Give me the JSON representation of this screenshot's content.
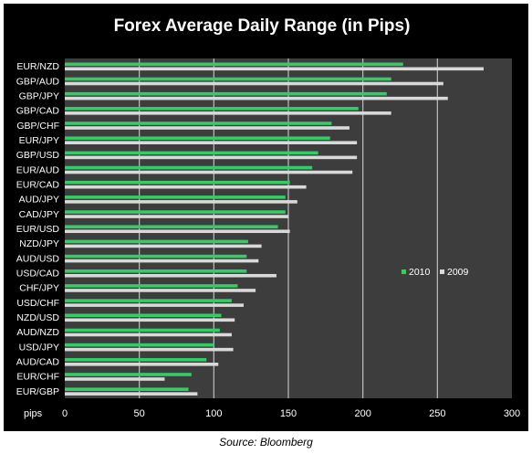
{
  "chart_data": {
    "type": "bar",
    "orientation": "horizontal",
    "title": "Forex Average Daily Range (in Pips)",
    "xlabel": "pips",
    "ylabel": "",
    "xlim": [
      0,
      300
    ],
    "xticks": [
      0,
      50,
      100,
      150,
      200,
      250,
      300
    ],
    "grid": true,
    "legend_position": "right-middle",
    "categories": [
      "EUR/NZD",
      "GBP/AUD",
      "GBP/JPY",
      "GBP/CAD",
      "GBP/CHF",
      "EUR/JPY",
      "GBP/USD",
      "EUR/AUD",
      "EUR/CAD",
      "AUD/JPY",
      "CAD/JPY",
      "EUR/USD",
      "NZD/JPY",
      "AUD/USD",
      "USD/CAD",
      "CHF/JPY",
      "USD/CHF",
      "NZD/USD",
      "AUD/NZD",
      "USD/JPY",
      "AUD/CAD",
      "EUR/CHF",
      "EUR/GBP"
    ],
    "series": [
      {
        "name": "2010",
        "color": "#33cc66",
        "values": [
          227,
          219,
          216,
          197,
          179,
          178,
          170,
          166,
          151,
          148,
          148,
          143,
          123,
          122,
          122,
          116,
          112,
          105,
          104,
          100,
          95,
          85,
          83
        ]
      },
      {
        "name": "2009",
        "color": "#d9d9d9",
        "values": [
          281,
          254,
          257,
          219,
          191,
          196,
          196,
          193,
          162,
          156,
          150,
          151,
          132,
          130,
          142,
          128,
          120,
          114,
          112,
          113,
          103,
          67,
          89
        ]
      }
    ]
  },
  "source_note": "Source: Bloomberg",
  "colors": {
    "background": "#000000",
    "plot_area": "#3d3d3d",
    "gridline": "#bfbfbf",
    "text": "#ffffff"
  }
}
